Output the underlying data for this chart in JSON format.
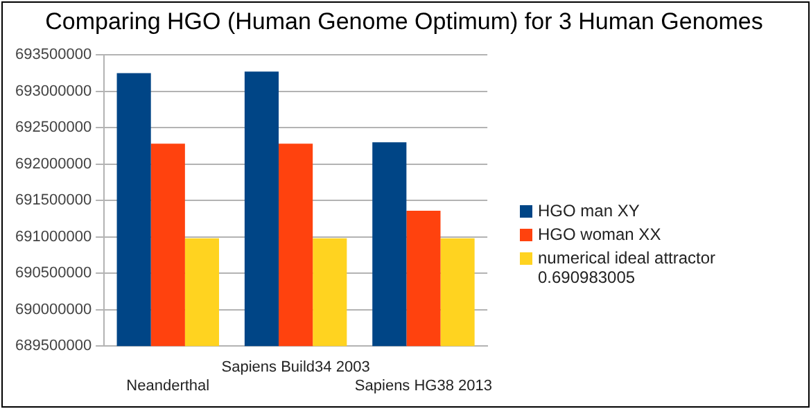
{
  "chart_data": {
    "type": "bar",
    "title": "Comparing HGO (Human Genome Optimum) for 3 Human Genomes",
    "categories": [
      "Neanderthal",
      "Sapiens Build34 2003",
      "Sapiens HG38 2013"
    ],
    "series": [
      {
        "name": "HGO man XY",
        "color": "#004586",
        "values": [
          693250000,
          693270000,
          692300000
        ]
      },
      {
        "name": "HGO woman XX",
        "color": "#ff420e",
        "values": [
          692280000,
          692280000,
          691360000
        ]
      },
      {
        "name": "numerical ideal attractor 0.690983005",
        "color": "#ffd320",
        "values": [
          690980000,
          690980000,
          690980000
        ]
      }
    ],
    "ylim": [
      689500000,
      693500000
    ],
    "yticks": [
      689500000,
      690000000,
      690500000,
      691000000,
      691500000,
      692000000,
      692500000,
      693000000,
      693500000
    ],
    "grid": "y",
    "legend": "right"
  }
}
